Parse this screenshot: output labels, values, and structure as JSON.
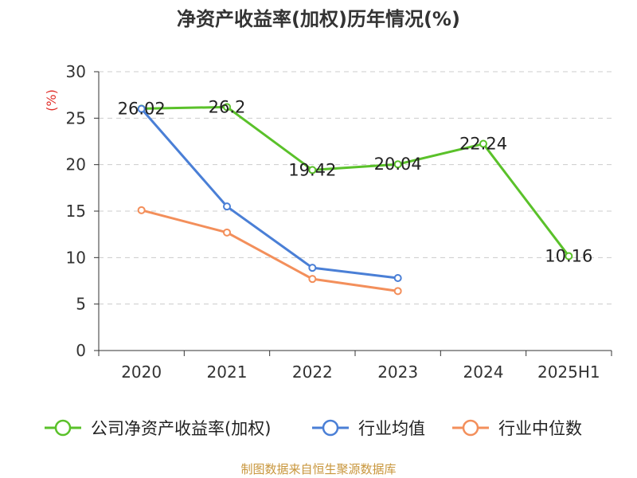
{
  "chart_data": {
    "type": "line",
    "title": "净资产收益率(加权)历年情况(%)",
    "ylabel": "(%)",
    "categories": [
      "2020",
      "2021",
      "2022",
      "2023",
      "2024",
      "2025H1"
    ],
    "ylim": [
      0,
      30
    ],
    "yticks": [
      0,
      5,
      10,
      15,
      20,
      25,
      30
    ],
    "grid": true,
    "legend_position": "bottom",
    "series": [
      {
        "name": "公司净资产收益率(加权)",
        "color": "#5ac12a",
        "values": [
          26.02,
          26.2,
          19.42,
          20.04,
          22.24,
          10.16
        ],
        "labels": [
          "26.02",
          "26.2",
          "19.42",
          "20.04",
          "22.24",
          "10.16"
        ]
      },
      {
        "name": "行业均值",
        "color": "#4a7fd6",
        "values": [
          26.0,
          15.5,
          8.9,
          7.8,
          null,
          null
        ]
      },
      {
        "name": "行业中位数",
        "color": "#f38f5b",
        "values": [
          15.1,
          12.7,
          7.7,
          6.4,
          null,
          null
        ]
      }
    ]
  },
  "footer": {
    "source": "制图数据来自恒生聚源数据库"
  }
}
